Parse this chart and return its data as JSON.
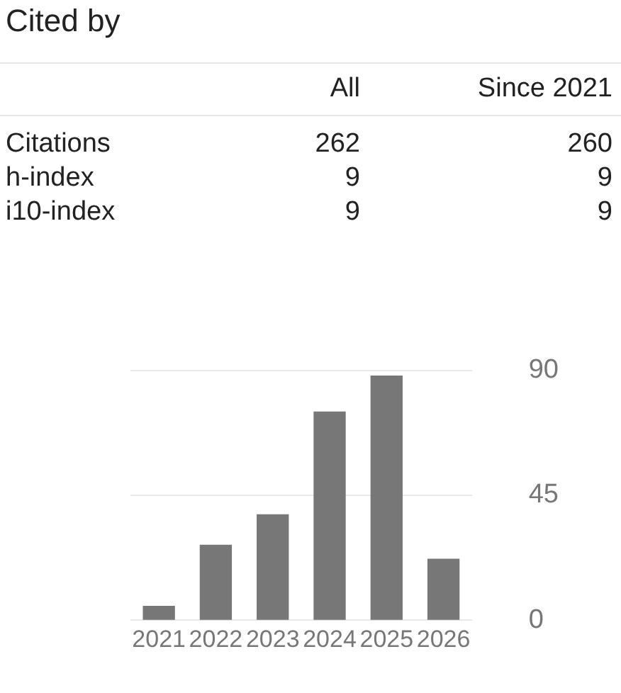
{
  "chart_data": {
    "type": "bar",
    "title": "Cited by",
    "annotations": [
      "All",
      "Since 2021",
      "Citations",
      "262",
      "260",
      "h-index",
      "9",
      "9",
      "i10-index",
      "9",
      "9"
    ],
    "categories": [
      "2021",
      "2022",
      "2023",
      "2024",
      "2025",
      "2026"
    ],
    "values": [
      5,
      27,
      38,
      75,
      88,
      22
    ],
    "color": "#777777",
    "ylim": [
      0,
      90
    ],
    "yticks": [
      0,
      45,
      90
    ],
    "grid": "y"
  }
}
